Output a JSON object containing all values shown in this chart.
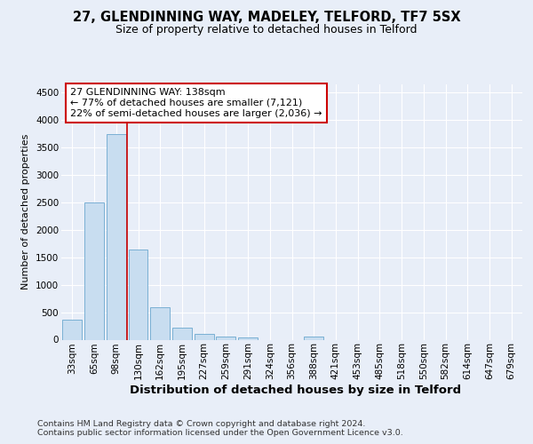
{
  "title1": "27, GLENDINNING WAY, MADELEY, TELFORD, TF7 5SX",
  "title2": "Size of property relative to detached houses in Telford",
  "xlabel": "Distribution of detached houses by size in Telford",
  "ylabel": "Number of detached properties",
  "categories": [
    "33sqm",
    "65sqm",
    "98sqm",
    "130sqm",
    "162sqm",
    "195sqm",
    "227sqm",
    "259sqm",
    "291sqm",
    "324sqm",
    "356sqm",
    "388sqm",
    "421sqm",
    "453sqm",
    "485sqm",
    "518sqm",
    "550sqm",
    "582sqm",
    "614sqm",
    "647sqm",
    "679sqm"
  ],
  "values": [
    370,
    2500,
    3750,
    1640,
    590,
    220,
    105,
    60,
    40,
    0,
    0,
    50,
    0,
    0,
    0,
    0,
    0,
    0,
    0,
    0,
    0
  ],
  "bar_color": "#c8ddf0",
  "bar_edge_color": "#7ab0d4",
  "vline_index": 2.5,
  "vline_color": "#cc0000",
  "annotation_line1": "27 GLENDINNING WAY: 138sqm",
  "annotation_line2": "← 77% of detached houses are smaller (7,121)",
  "annotation_line3": "22% of semi-detached houses are larger (2,036) →",
  "annotation_box_edgecolor": "#cc0000",
  "ylim_max": 4650,
  "yticks": [
    0,
    500,
    1000,
    1500,
    2000,
    2500,
    3000,
    3500,
    4000,
    4500
  ],
  "footer_line1": "Contains HM Land Registry data © Crown copyright and database right 2024.",
  "footer_line2": "Contains public sector information licensed under the Open Government Licence v3.0.",
  "bg_color": "#e8eef8",
  "grid_color": "#ffffff",
  "title1_fontsize": 10.5,
  "title2_fontsize": 9,
  "ylabel_fontsize": 8,
  "xlabel_fontsize": 9.5,
  "tick_fontsize": 7.5,
  "footer_fontsize": 6.8
}
